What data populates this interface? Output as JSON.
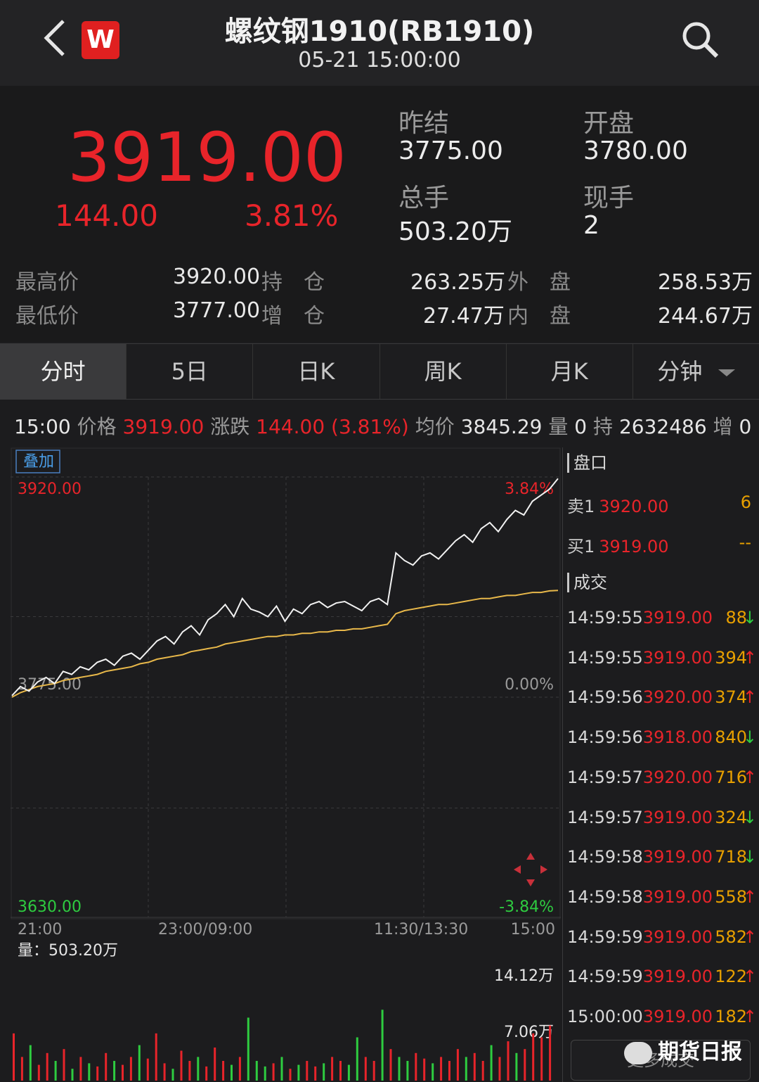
{
  "header": {
    "title": "螺纹钢1910(RB1910)",
    "time": "05-21 15:00:00",
    "logo_letter": "W"
  },
  "quote": {
    "price": "3919.00",
    "change": "144.00",
    "change_pct": "3.81%",
    "prev_settle_label": "昨结",
    "prev_settle": "3775.00",
    "open_label": "开盘",
    "open": "3780.00",
    "total_vol_label": "总手",
    "total_vol": "503.20万",
    "cur_vol_label": "现手",
    "cur_vol": "2"
  },
  "stats": [
    {
      "label": "最高价",
      "value": "3920.00",
      "label2": "持　仓",
      "value2": "263.25万",
      "label3": "外　盘",
      "value3": "258.53万"
    },
    {
      "label": "最低价",
      "value": "3777.00",
      "label2": "增　仓",
      "value2": "27.47万",
      "label3": "内　盘",
      "value3": "244.67万"
    }
  ],
  "tabs": [
    "分时",
    "5日",
    "日K",
    "周K",
    "月K",
    "分钟"
  ],
  "info": {
    "time": "15:00",
    "price_label": "价格",
    "price": "3919.00",
    "chg_label": "涨跌",
    "chg": "144.00 (3.81%)",
    "avg_label": "均价",
    "avg": "3845.29",
    "vol_label": "量",
    "vol": "0",
    "oi_label": "持",
    "oi": "2632486",
    "inc_label": "增",
    "inc": "0"
  },
  "chart_data": {
    "type": "line",
    "overlay_label": "叠加",
    "y_top": "3920.00",
    "y_mid": "3775.00",
    "y_bottom": "3630.00",
    "pct_top": "3.84%",
    "pct_mid": "0.00%",
    "pct_bottom": "-3.84%",
    "ylim": [
      3630,
      3920
    ],
    "x_ticks": [
      "21:00",
      "23:00/09:00",
      "11:30/13:30",
      "15:00"
    ],
    "price": [
      3776,
      3782,
      3779,
      3785,
      3788,
      3784,
      3792,
      3790,
      3795,
      3793,
      3798,
      3800,
      3796,
      3802,
      3804,
      3800,
      3806,
      3812,
      3815,
      3810,
      3818,
      3822,
      3816,
      3826,
      3830,
      3836,
      3828,
      3840,
      3833,
      3831,
      3828,
      3835,
      3825,
      3833,
      3830,
      3836,
      3838,
      3834,
      3837,
      3838,
      3835,
      3832,
      3838,
      3840,
      3836,
      3870,
      3865,
      3862,
      3868,
      3870,
      3866,
      3872,
      3878,
      3882,
      3877,
      3886,
      3890,
      3884,
      3892,
      3898,
      3895,
      3904,
      3908,
      3912,
      3919
    ],
    "avg": [
      3775,
      3778,
      3780,
      3782,
      3783,
      3784,
      3786,
      3787,
      3788,
      3789,
      3790,
      3792,
      3793,
      3794,
      3795,
      3797,
      3798,
      3800,
      3801,
      3802,
      3803,
      3805,
      3806,
      3807,
      3808,
      3810,
      3811,
      3812,
      3813,
      3814,
      3815,
      3815,
      3816,
      3816,
      3817,
      3817,
      3818,
      3818,
      3819,
      3819,
      3820,
      3820,
      3821,
      3822,
      3823,
      3830,
      3832,
      3833,
      3834,
      3835,
      3836,
      3836,
      3837,
      3838,
      3839,
      3840,
      3840,
      3841,
      3842,
      3842,
      3843,
      3844,
      3844,
      3845,
      3845.29
    ],
    "vol_label": "量：503.20万",
    "vol_tick1": "14.12万",
    "vol_tick2": "7.06万",
    "vol_max": 141200,
    "volumes": [
      60000,
      30000,
      45000,
      20000,
      35000,
      25000,
      40000,
      15000,
      30000,
      22000,
      18000,
      35000,
      25000,
      20000,
      30000,
      45000,
      28000,
      60000,
      22000,
      15000,
      38000,
      25000,
      30000,
      18000,
      42000,
      25000,
      20000,
      30000,
      80000,
      25000,
      18000,
      22000,
      30000,
      15000,
      20000,
      25000,
      18000,
      22000,
      30000,
      25000,
      20000,
      55000,
      30000,
      25000,
      90000,
      40000,
      30000,
      25000,
      35000,
      28000,
      22000,
      30000,
      25000,
      40000,
      30000,
      35000,
      25000,
      45000,
      30000,
      50000,
      35000,
      40000,
      60000,
      55000,
      70000
    ]
  },
  "orderbook": {
    "title": "盘口",
    "rows": [
      {
        "label": "卖1",
        "price": "3920.00",
        "vol": "6"
      },
      {
        "label": "买1",
        "price": "3919.00",
        "vol": "--"
      }
    ]
  },
  "trades": {
    "title": "成交",
    "rows": [
      {
        "time": "14:59:55",
        "price": "3919.00",
        "qty": "88",
        "dir": "↓"
      },
      {
        "time": "14:59:55",
        "price": "3919.00",
        "qty": "394",
        "dir": "↑"
      },
      {
        "time": "14:59:56",
        "price": "3920.00",
        "qty": "374",
        "dir": "↑"
      },
      {
        "time": "14:59:56",
        "price": "3918.00",
        "qty": "840",
        "dir": "↓"
      },
      {
        "time": "14:59:57",
        "price": "3920.00",
        "qty": "716",
        "dir": "↑"
      },
      {
        "time": "14:59:57",
        "price": "3919.00",
        "qty": "324",
        "dir": "↓"
      },
      {
        "time": "14:59:58",
        "price": "3919.00",
        "qty": "718",
        "dir": "↓"
      },
      {
        "time": "14:59:58",
        "price": "3919.00",
        "qty": "558",
        "dir": "↑"
      },
      {
        "time": "14:59:59",
        "price": "3919.00",
        "qty": "582",
        "dir": "↑"
      },
      {
        "time": "14:59:59",
        "price": "3919.00",
        "qty": "122",
        "dir": "↑"
      },
      {
        "time": "15:00:00",
        "price": "3919.00",
        "qty": "182",
        "dir": "↑"
      }
    ],
    "more": "更多成交"
  },
  "watermark": "期货日报",
  "colors": {
    "up": "#e8242a",
    "down": "#2ecc40",
    "bg": "#1c1c1e",
    "avg_line": "#e8b84a"
  }
}
